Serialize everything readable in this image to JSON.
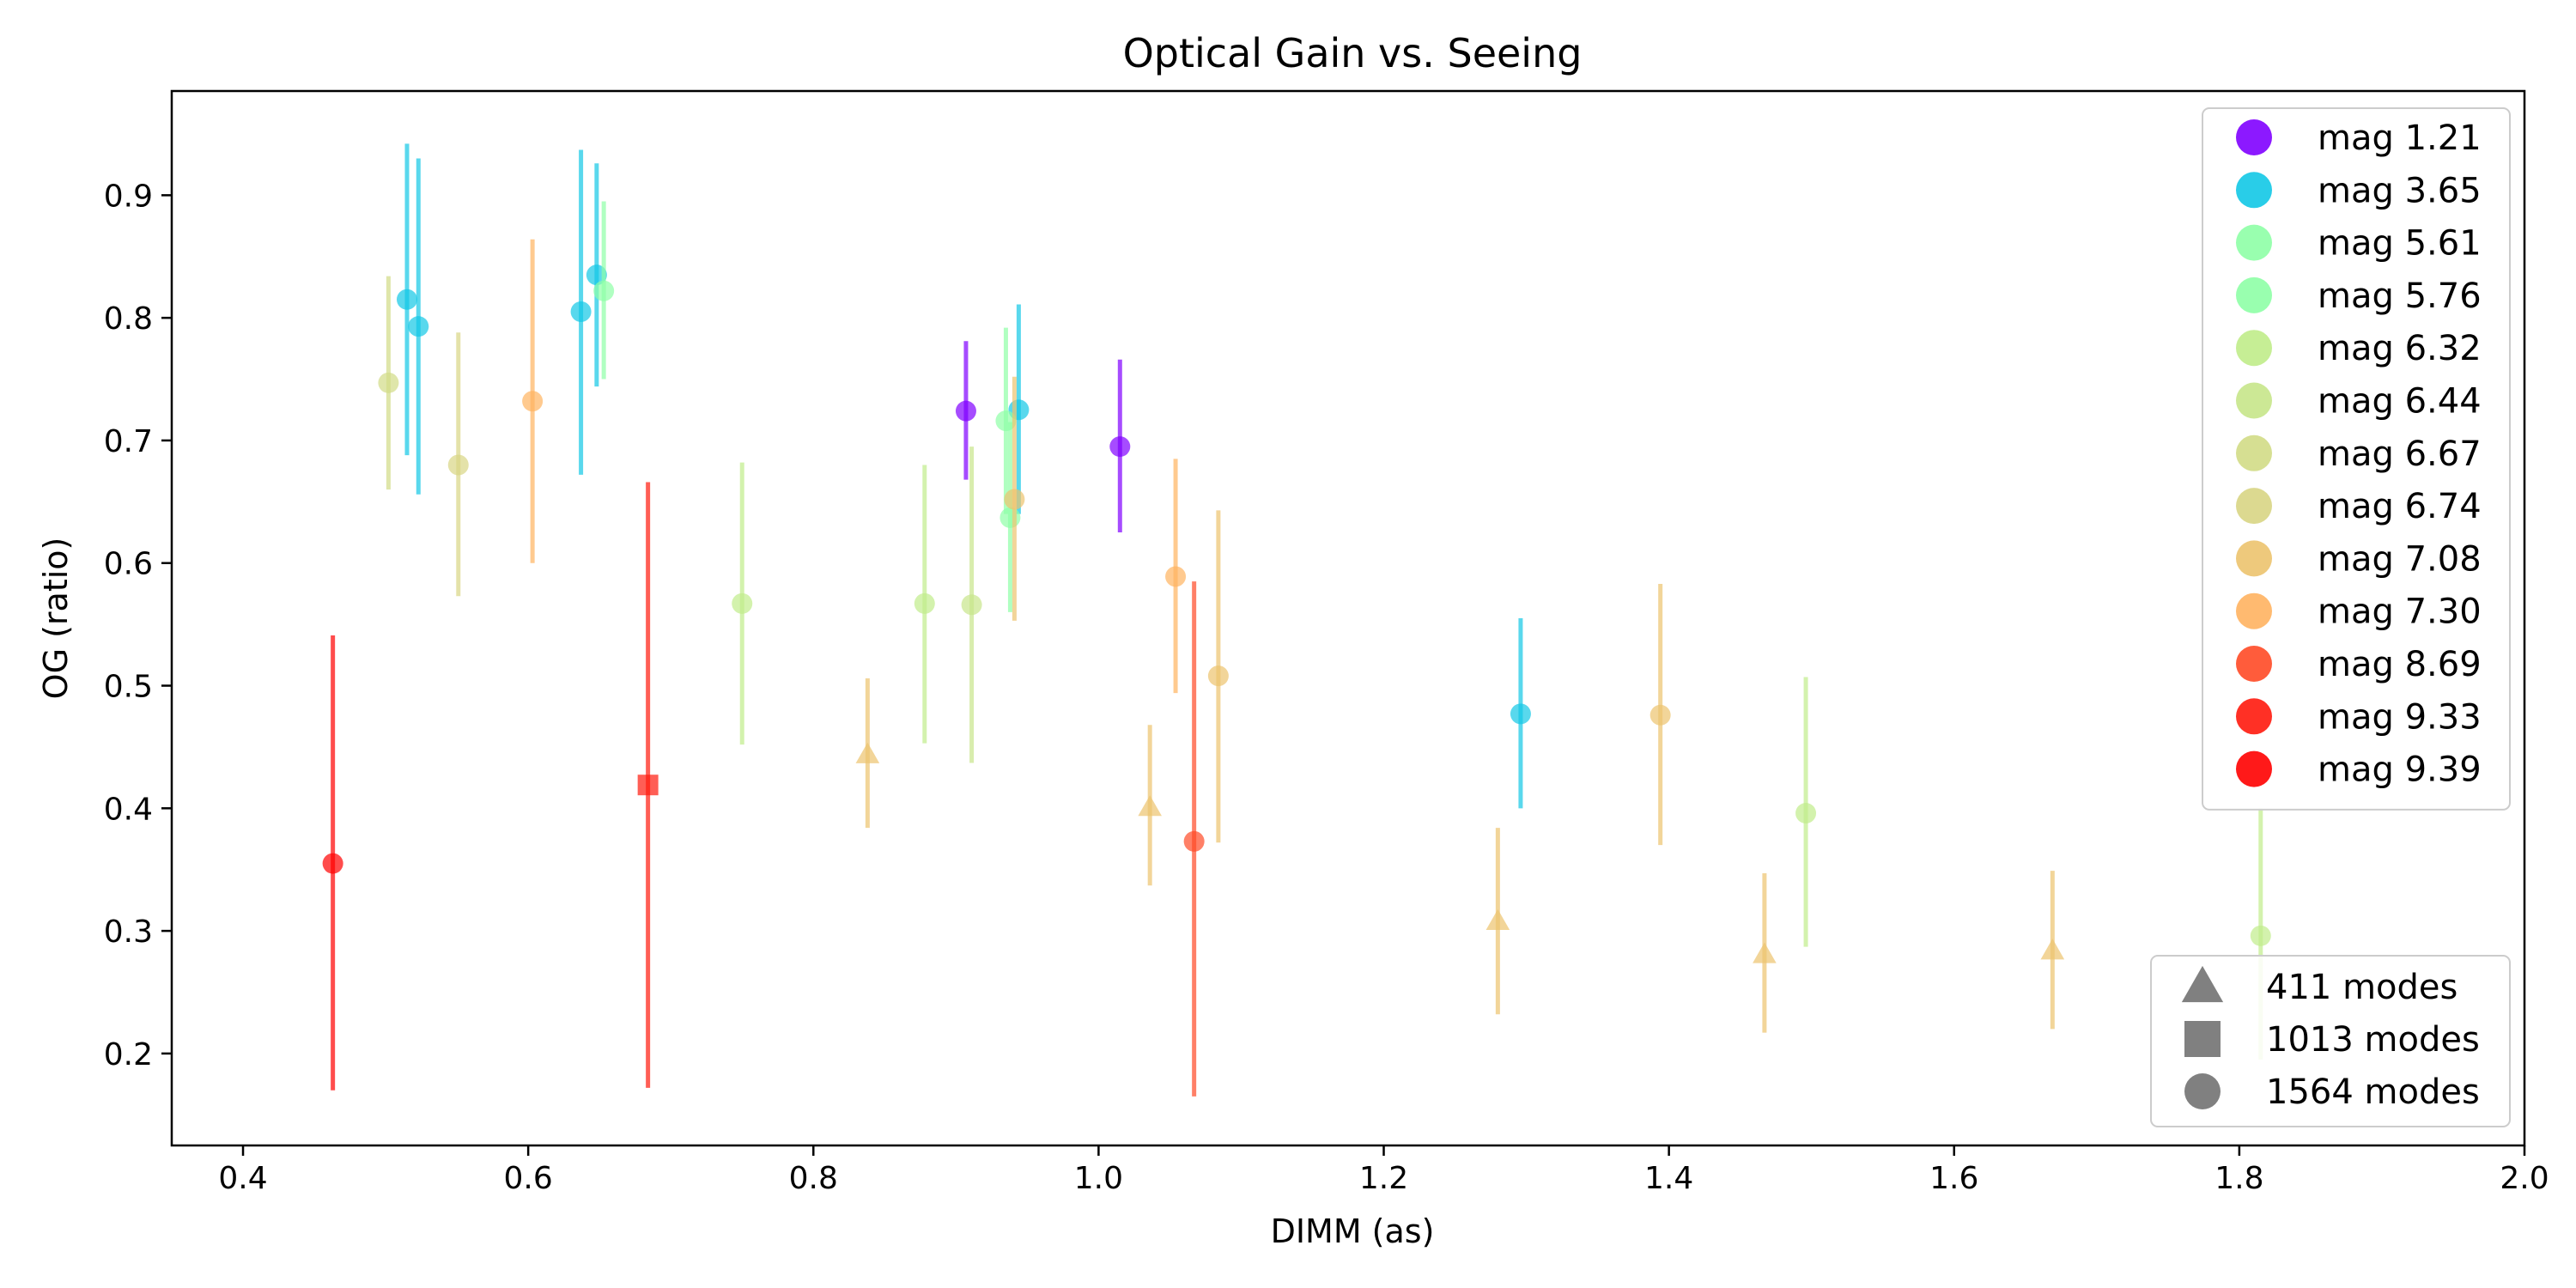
{
  "chart_data": {
    "type": "scatter",
    "title": "Optical Gain vs. Seeing",
    "xlabel": "DIMM (as)",
    "ylabel": "OG (ratio)",
    "xlim": [
      0.35,
      2.0
    ],
    "ylim": [
      0.125,
      0.985
    ],
    "xticks": [
      0.4,
      0.6,
      0.8,
      1.0,
      1.2,
      1.4,
      1.6,
      1.8,
      2.0
    ],
    "xtick_labels": [
      "0.4",
      "0.6",
      "0.8",
      "1.0",
      "1.2",
      "1.4",
      "1.6",
      "1.8",
      "2.0"
    ],
    "yticks": [
      0.2,
      0.3,
      0.4,
      0.5,
      0.6,
      0.7,
      0.8,
      0.9
    ],
    "ytick_labels": [
      "0.2",
      "0.3",
      "0.4",
      "0.5",
      "0.6",
      "0.7",
      "0.8",
      "0.9"
    ],
    "grid": false,
    "series": [
      {
        "name": "mag 1.21",
        "color": "#8000ff",
        "points": [
          {
            "x": 0.907,
            "y": 0.724,
            "lo": 0.668,
            "hi": 0.781,
            "marker": "circle"
          },
          {
            "x": 1.015,
            "y": 0.695,
            "lo": 0.625,
            "hi": 0.766,
            "marker": "circle"
          }
        ]
      },
      {
        "name": "mag 3.65",
        "color": "#12c8e6",
        "points": [
          {
            "x": 0.515,
            "y": 0.815,
            "lo": 0.688,
            "hi": 0.942,
            "marker": "circle"
          },
          {
            "x": 0.523,
            "y": 0.793,
            "lo": 0.656,
            "hi": 0.93,
            "marker": "circle"
          },
          {
            "x": 0.637,
            "y": 0.805,
            "lo": 0.672,
            "hi": 0.937,
            "marker": "circle"
          },
          {
            "x": 0.648,
            "y": 0.835,
            "lo": 0.744,
            "hi": 0.926,
            "marker": "circle"
          },
          {
            "x": 0.944,
            "y": 0.725,
            "lo": 0.64,
            "hi": 0.811,
            "marker": "circle"
          },
          {
            "x": 1.296,
            "y": 0.477,
            "lo": 0.4,
            "hi": 0.555,
            "marker": "circle"
          }
        ]
      },
      {
        "name": "mag 5.61",
        "color": "#8effa6",
        "points": [
          {
            "x": 0.653,
            "y": 0.822,
            "lo": 0.75,
            "hi": 0.895,
            "marker": "circle"
          },
          {
            "x": 0.935,
            "y": 0.716,
            "lo": 0.64,
            "hi": 0.792,
            "marker": "circle"
          }
        ]
      },
      {
        "name": "mag 5.76",
        "color": "#8effa6",
        "points": [
          {
            "x": 0.938,
            "y": 0.637,
            "lo": 0.56,
            "hi": 0.715,
            "marker": "circle"
          }
        ]
      },
      {
        "name": "mag 6.32",
        "color": "#c0ec8a",
        "points": [
          {
            "x": 0.75,
            "y": 0.567,
            "lo": 0.452,
            "hi": 0.682,
            "marker": "circle"
          },
          {
            "x": 0.878,
            "y": 0.567,
            "lo": 0.453,
            "hi": 0.68,
            "marker": "circle"
          },
          {
            "x": 1.496,
            "y": 0.396,
            "lo": 0.287,
            "hi": 0.507,
            "marker": "circle"
          },
          {
            "x": 1.815,
            "y": 0.296,
            "lo": 0.195,
            "hi": 0.4,
            "marker": "circle"
          }
        ]
      },
      {
        "name": "mag 6.44",
        "color": "#c7e58a",
        "points": [
          {
            "x": 0.911,
            "y": 0.566,
            "lo": 0.437,
            "hi": 0.695,
            "marker": "circle"
          }
        ]
      },
      {
        "name": "mag 6.67",
        "color": "#d2db86",
        "points": [
          {
            "x": 0.502,
            "y": 0.747,
            "lo": 0.66,
            "hi": 0.834,
            "marker": "circle"
          }
        ]
      },
      {
        "name": "mag 6.74",
        "color": "#d8d584",
        "points": [
          {
            "x": 0.551,
            "y": 0.68,
            "lo": 0.573,
            "hi": 0.788,
            "marker": "circle"
          }
        ]
      },
      {
        "name": "mag 7.08",
        "color": "#ecc36e",
        "points": [
          {
            "x": 0.941,
            "y": 0.652,
            "lo": 0.553,
            "hi": 0.752,
            "marker": "circle"
          },
          {
            "x": 1.084,
            "y": 0.508,
            "lo": 0.372,
            "hi": 0.643,
            "marker": "circle"
          },
          {
            "x": 1.394,
            "y": 0.476,
            "lo": 0.37,
            "hi": 0.583,
            "marker": "circle"
          },
          {
            "x": 0.838,
            "y": 0.444,
            "lo": 0.384,
            "hi": 0.506,
            "marker": "triangle"
          },
          {
            "x": 1.036,
            "y": 0.401,
            "lo": 0.337,
            "hi": 0.468,
            "marker": "triangle"
          },
          {
            "x": 1.28,
            "y": 0.308,
            "lo": 0.232,
            "hi": 0.384,
            "marker": "triangle"
          },
          {
            "x": 1.467,
            "y": 0.281,
            "lo": 0.217,
            "hi": 0.347,
            "marker": "triangle"
          },
          {
            "x": 1.669,
            "y": 0.284,
            "lo": 0.22,
            "hi": 0.349,
            "marker": "triangle"
          }
        ]
      },
      {
        "name": "mag 7.30",
        "color": "#ffb360",
        "points": [
          {
            "x": 0.603,
            "y": 0.732,
            "lo": 0.6,
            "hi": 0.864,
            "marker": "circle"
          },
          {
            "x": 1.054,
            "y": 0.589,
            "lo": 0.494,
            "hi": 0.685,
            "marker": "circle"
          }
        ]
      },
      {
        "name": "mag 8.69",
        "color": "#ff4a26",
        "points": [
          {
            "x": 1.067,
            "y": 0.373,
            "lo": 0.165,
            "hi": 0.585,
            "marker": "circle"
          }
        ]
      },
      {
        "name": "mag 9.33",
        "color": "#ff1a0d",
        "points": [
          {
            "x": 0.684,
            "y": 0.419,
            "lo": 0.172,
            "hi": 0.666,
            "marker": "square"
          }
        ]
      },
      {
        "name": "mag 9.39",
        "color": "#ff0000",
        "points": [
          {
            "x": 0.463,
            "y": 0.355,
            "lo": 0.17,
            "hi": 0.541,
            "marker": "circle"
          }
        ]
      }
    ],
    "marker_legend": [
      {
        "label": "411 modes",
        "marker": "triangle"
      },
      {
        "label": "1013 modes",
        "marker": "square"
      },
      {
        "label": "1564 modes",
        "marker": "circle"
      }
    ],
    "legend_placement": "upper-right",
    "marker_legend_placement": "lower-right"
  },
  "colors": {
    "marker_legend_gray": "#808080"
  }
}
